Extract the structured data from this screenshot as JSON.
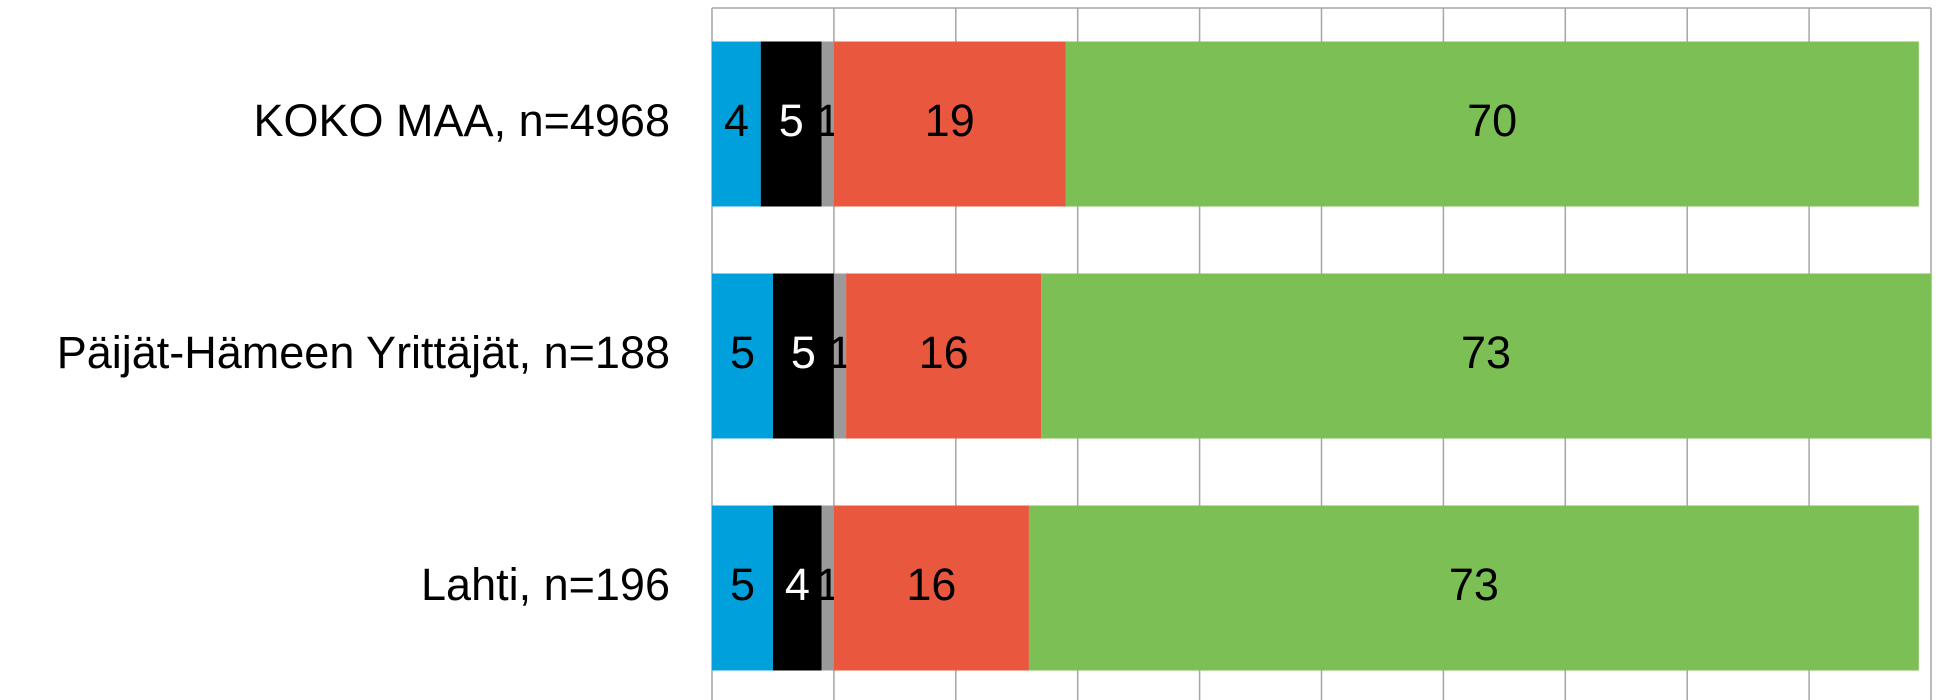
{
  "chart_data": {
    "type": "stacked_barh",
    "categories": [
      "KOKO MAA, n=4968",
      "Päijät-Hämeen Yrittäjät, n=188",
      "Lahti, n=196"
    ],
    "series": [
      {
        "color": "#00a0dc",
        "label_color": "#000000",
        "values": [
          4,
          5,
          5
        ]
      },
      {
        "color": "#000000",
        "label_color": "#ffffff",
        "values": [
          5,
          5,
          4
        ]
      },
      {
        "color": "#9a9a9a",
        "label_color": "#000000",
        "values": [
          1,
          1,
          1
        ]
      },
      {
        "color": "#e8573e",
        "label_color": "#000000",
        "values": [
          19,
          16,
          16
        ]
      },
      {
        "color": "#7bbf55",
        "label_color": "#000000",
        "values": [
          70,
          73,
          73
        ]
      }
    ],
    "xlim": [
      0,
      100
    ],
    "xticks": [
      0,
      10,
      20,
      30,
      40,
      50,
      60,
      70,
      80,
      90,
      100
    ],
    "grid": true
  }
}
